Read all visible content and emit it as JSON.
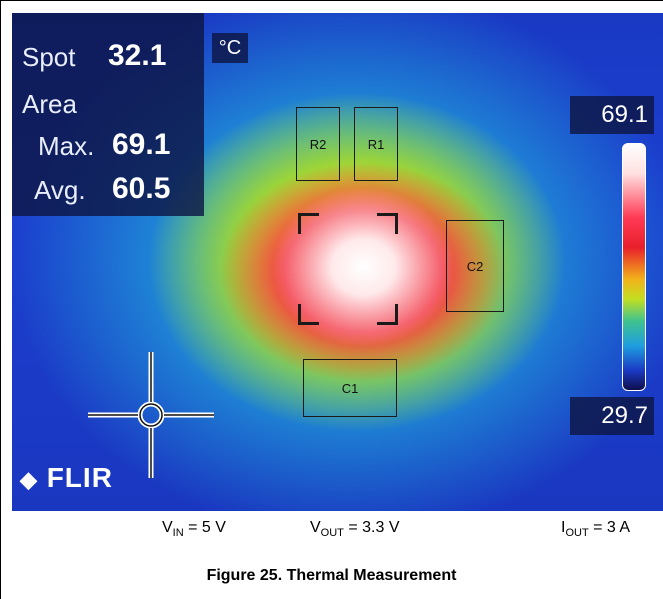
{
  "thermal_image": {
    "spot_label": "Spot",
    "spot_value": "32.1",
    "unit": "°C",
    "area_label": "Area",
    "max_label": "Max.",
    "max_value": "69.1",
    "avg_label": "Avg.",
    "avg_value": "60.5",
    "scale_max": "69.1",
    "scale_min": "29.7",
    "components": {
      "r2": "R2",
      "r1": "R1",
      "c2": "C2",
      "c1": "C1"
    },
    "logo_text": "FLIR"
  },
  "conditions": {
    "vin": {
      "main": "V",
      "sub": "IN",
      "rest": " = 5 V"
    },
    "vout": {
      "main": "V",
      "sub": "OUT",
      "rest": " = 3.3 V"
    },
    "iout": {
      "main": "I",
      "sub": "OUT",
      "rest": " = 3 A"
    }
  },
  "figure_caption": "Figure 25. Thermal Measurement",
  "colors": {
    "background_blue": "#1a3ac4",
    "hotspot_red": "#f02840",
    "overlay_panel": "#0e1646"
  }
}
